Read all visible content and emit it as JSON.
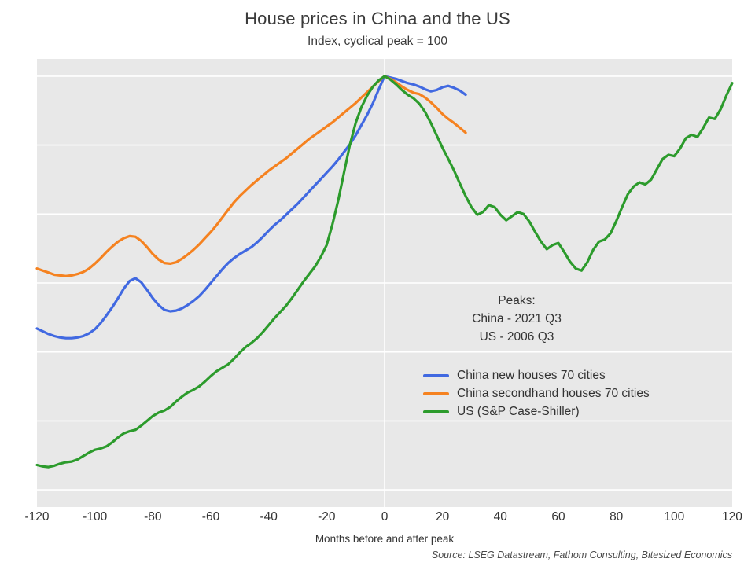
{
  "title": "House prices in China and the US",
  "subtitle": "Index, cyclical peak = 100",
  "xlabel": "Months before and after peak",
  "source": "Source: LSEG Datastream, Fathom Consulting, Bitesized Economics",
  "annotation": {
    "lines": [
      "Peaks:",
      "China - 2021 Q3",
      "US - 2006 Q3"
    ]
  },
  "legend": [
    {
      "label": "China new houses 70 cities",
      "color": "#4169e1"
    },
    {
      "label": "China secondhand houses 70 cities",
      "color": "#f58220"
    },
    {
      "label": "US (S&P Case-Shiller)",
      "color": "#2c9b2c"
    }
  ],
  "colors": {
    "plot_bg": "#e8e8e8",
    "grid": "#ffffff",
    "text": "#333333"
  },
  "chart_data": {
    "type": "line",
    "title": "House prices in China and the US",
    "subtitle": "Index, cyclical peak = 100",
    "xlabel": "Months before and after peak",
    "ylabel": "",
    "xlim": [
      -120,
      120
    ],
    "ylim": [
      37.5,
      102.5
    ],
    "xticks": [
      -120,
      -100,
      -80,
      -60,
      -40,
      -20,
      0,
      20,
      40,
      60,
      80,
      100,
      120
    ],
    "gridlines_y": [
      40,
      50,
      60,
      70,
      80,
      90,
      100
    ],
    "vline_x": 0,
    "grid": "horizontal white lines on grey panel, no y tick labels",
    "legend_position": "inside center-right",
    "series": [
      {
        "name": "China new houses 70 cities",
        "color": "#4169e1",
        "points": [
          [
            -120,
            63.4
          ],
          [
            -118,
            63.0
          ],
          [
            -116,
            62.6
          ],
          [
            -114,
            62.3
          ],
          [
            -112,
            62.1
          ],
          [
            -110,
            62.0
          ],
          [
            -108,
            62.0
          ],
          [
            -106,
            62.1
          ],
          [
            -104,
            62.3
          ],
          [
            -102,
            62.7
          ],
          [
            -100,
            63.3
          ],
          [
            -98,
            64.2
          ],
          [
            -96,
            65.3
          ],
          [
            -94,
            66.5
          ],
          [
            -92,
            67.8
          ],
          [
            -90,
            69.2
          ],
          [
            -88,
            70.3
          ],
          [
            -86,
            70.7
          ],
          [
            -84,
            70.1
          ],
          [
            -82,
            69.0
          ],
          [
            -80,
            67.8
          ],
          [
            -78,
            66.8
          ],
          [
            -76,
            66.1
          ],
          [
            -74,
            65.9
          ],
          [
            -72,
            66.0
          ],
          [
            -70,
            66.3
          ],
          [
            -68,
            66.8
          ],
          [
            -66,
            67.4
          ],
          [
            -64,
            68.1
          ],
          [
            -62,
            69.0
          ],
          [
            -60,
            70.0
          ],
          [
            -58,
            71.0
          ],
          [
            -56,
            72.0
          ],
          [
            -54,
            72.9
          ],
          [
            -52,
            73.6
          ],
          [
            -50,
            74.2
          ],
          [
            -48,
            74.7
          ],
          [
            -46,
            75.2
          ],
          [
            -44,
            75.9
          ],
          [
            -42,
            76.7
          ],
          [
            -40,
            77.6
          ],
          [
            -38,
            78.4
          ],
          [
            -36,
            79.1
          ],
          [
            -34,
            79.9
          ],
          [
            -32,
            80.7
          ],
          [
            -30,
            81.5
          ],
          [
            -28,
            82.4
          ],
          [
            -26,
            83.3
          ],
          [
            -24,
            84.2
          ],
          [
            -22,
            85.1
          ],
          [
            -20,
            86.0
          ],
          [
            -18,
            86.9
          ],
          [
            -16,
            87.9
          ],
          [
            -14,
            89.0
          ],
          [
            -12,
            90.1
          ],
          [
            -10,
            91.4
          ],
          [
            -8,
            92.9
          ],
          [
            -6,
            94.4
          ],
          [
            -4,
            96.1
          ],
          [
            -2,
            98.1
          ],
          [
            0,
            100.0
          ],
          [
            2,
            99.8
          ],
          [
            4,
            99.6
          ],
          [
            6,
            99.3
          ],
          [
            8,
            99.0
          ],
          [
            10,
            98.8
          ],
          [
            12,
            98.5
          ],
          [
            14,
            98.1
          ],
          [
            16,
            97.8
          ],
          [
            18,
            98.0
          ],
          [
            20,
            98.4
          ],
          [
            22,
            98.6
          ],
          [
            24,
            98.3
          ],
          [
            26,
            97.9
          ],
          [
            28,
            97.3
          ]
        ]
      },
      {
        "name": "China secondhand houses 70 cities",
        "color": "#f58220",
        "points": [
          [
            -120,
            72.1
          ],
          [
            -118,
            71.8
          ],
          [
            -116,
            71.5
          ],
          [
            -114,
            71.2
          ],
          [
            -112,
            71.1
          ],
          [
            -110,
            71.0
          ],
          [
            -108,
            71.1
          ],
          [
            -106,
            71.3
          ],
          [
            -104,
            71.6
          ],
          [
            -102,
            72.1
          ],
          [
            -100,
            72.8
          ],
          [
            -98,
            73.6
          ],
          [
            -96,
            74.5
          ],
          [
            -94,
            75.3
          ],
          [
            -92,
            76.0
          ],
          [
            -90,
            76.5
          ],
          [
            -88,
            76.8
          ],
          [
            -86,
            76.7
          ],
          [
            -84,
            76.1
          ],
          [
            -82,
            75.2
          ],
          [
            -80,
            74.2
          ],
          [
            -78,
            73.4
          ],
          [
            -76,
            72.9
          ],
          [
            -74,
            72.8
          ],
          [
            -72,
            73.0
          ],
          [
            -70,
            73.5
          ],
          [
            -68,
            74.1
          ],
          [
            -66,
            74.8
          ],
          [
            -64,
            75.6
          ],
          [
            -62,
            76.5
          ],
          [
            -60,
            77.4
          ],
          [
            -58,
            78.4
          ],
          [
            -56,
            79.5
          ],
          [
            -54,
            80.6
          ],
          [
            -52,
            81.7
          ],
          [
            -50,
            82.6
          ],
          [
            -48,
            83.4
          ],
          [
            -46,
            84.2
          ],
          [
            -44,
            84.9
          ],
          [
            -42,
            85.6
          ],
          [
            -40,
            86.3
          ],
          [
            -38,
            86.9
          ],
          [
            -36,
            87.5
          ],
          [
            -34,
            88.1
          ],
          [
            -32,
            88.8
          ],
          [
            -30,
            89.5
          ],
          [
            -28,
            90.2
          ],
          [
            -26,
            90.9
          ],
          [
            -24,
            91.5
          ],
          [
            -22,
            92.1
          ],
          [
            -20,
            92.7
          ],
          [
            -18,
            93.3
          ],
          [
            -16,
            94.0
          ],
          [
            -14,
            94.7
          ],
          [
            -12,
            95.4
          ],
          [
            -10,
            96.1
          ],
          [
            -8,
            96.9
          ],
          [
            -6,
            97.7
          ],
          [
            -4,
            98.5
          ],
          [
            -2,
            99.3
          ],
          [
            0,
            100.0
          ],
          [
            2,
            99.6
          ],
          [
            4,
            99.1
          ],
          [
            6,
            98.5
          ],
          [
            8,
            98.0
          ],
          [
            10,
            97.6
          ],
          [
            12,
            97.4
          ],
          [
            14,
            96.9
          ],
          [
            16,
            96.2
          ],
          [
            18,
            95.4
          ],
          [
            20,
            94.5
          ],
          [
            22,
            93.8
          ],
          [
            24,
            93.2
          ],
          [
            26,
            92.5
          ],
          [
            28,
            91.8
          ]
        ]
      },
      {
        "name": "US (S&P Case-Shiller)",
        "color": "#2c9b2c",
        "points": [
          [
            -120,
            43.6
          ],
          [
            -118,
            43.4
          ],
          [
            -116,
            43.3
          ],
          [
            -114,
            43.5
          ],
          [
            -112,
            43.8
          ],
          [
            -110,
            44.0
          ],
          [
            -108,
            44.1
          ],
          [
            -106,
            44.4
          ],
          [
            -104,
            44.9
          ],
          [
            -102,
            45.4
          ],
          [
            -100,
            45.8
          ],
          [
            -98,
            46.0
          ],
          [
            -96,
            46.3
          ],
          [
            -94,
            46.9
          ],
          [
            -92,
            47.6
          ],
          [
            -90,
            48.2
          ],
          [
            -88,
            48.5
          ],
          [
            -86,
            48.7
          ],
          [
            -84,
            49.3
          ],
          [
            -82,
            50.0
          ],
          [
            -80,
            50.7
          ],
          [
            -78,
            51.2
          ],
          [
            -76,
            51.5
          ],
          [
            -74,
            52.0
          ],
          [
            -72,
            52.8
          ],
          [
            -70,
            53.5
          ],
          [
            -68,
            54.1
          ],
          [
            -66,
            54.5
          ],
          [
            -64,
            55.0
          ],
          [
            -62,
            55.7
          ],
          [
            -60,
            56.5
          ],
          [
            -58,
            57.2
          ],
          [
            -56,
            57.7
          ],
          [
            -54,
            58.2
          ],
          [
            -52,
            59.0
          ],
          [
            -50,
            59.9
          ],
          [
            -48,
            60.7
          ],
          [
            -46,
            61.3
          ],
          [
            -44,
            62.0
          ],
          [
            -42,
            62.9
          ],
          [
            -40,
            63.9
          ],
          [
            -38,
            64.9
          ],
          [
            -36,
            65.8
          ],
          [
            -34,
            66.7
          ],
          [
            -32,
            67.8
          ],
          [
            -30,
            69.0
          ],
          [
            -28,
            70.2
          ],
          [
            -26,
            71.3
          ],
          [
            -24,
            72.4
          ],
          [
            -22,
            73.8
          ],
          [
            -20,
            75.5
          ],
          [
            -18,
            78.5
          ],
          [
            -16,
            82.0
          ],
          [
            -14,
            86.0
          ],
          [
            -12,
            90.0
          ],
          [
            -10,
            93.2
          ],
          [
            -8,
            95.5
          ],
          [
            -6,
            97.2
          ],
          [
            -4,
            98.5
          ],
          [
            -2,
            99.4
          ],
          [
            0,
            100.0
          ],
          [
            2,
            99.5
          ],
          [
            4,
            98.8
          ],
          [
            6,
            98.0
          ],
          [
            8,
            97.3
          ],
          [
            10,
            96.8
          ],
          [
            12,
            96.0
          ],
          [
            14,
            94.8
          ],
          [
            16,
            93.2
          ],
          [
            18,
            91.4
          ],
          [
            20,
            89.6
          ],
          [
            22,
            88.0
          ],
          [
            24,
            86.3
          ],
          [
            26,
            84.4
          ],
          [
            28,
            82.6
          ],
          [
            30,
            81.0
          ],
          [
            32,
            79.9
          ],
          [
            34,
            80.3
          ],
          [
            36,
            81.3
          ],
          [
            38,
            81.0
          ],
          [
            40,
            79.9
          ],
          [
            42,
            79.1
          ],
          [
            44,
            79.7
          ],
          [
            46,
            80.3
          ],
          [
            48,
            80.0
          ],
          [
            50,
            78.9
          ],
          [
            52,
            77.4
          ],
          [
            54,
            76.0
          ],
          [
            56,
            74.9
          ],
          [
            58,
            75.5
          ],
          [
            60,
            75.8
          ],
          [
            62,
            74.5
          ],
          [
            64,
            73.1
          ],
          [
            66,
            72.1
          ],
          [
            68,
            71.8
          ],
          [
            70,
            73.0
          ],
          [
            72,
            74.8
          ],
          [
            74,
            76.0
          ],
          [
            76,
            76.3
          ],
          [
            78,
            77.2
          ],
          [
            80,
            79.0
          ],
          [
            82,
            81.0
          ],
          [
            84,
            82.9
          ],
          [
            86,
            84.0
          ],
          [
            88,
            84.6
          ],
          [
            90,
            84.3
          ],
          [
            92,
            85.0
          ],
          [
            94,
            86.5
          ],
          [
            96,
            88.0
          ],
          [
            98,
            88.6
          ],
          [
            100,
            88.4
          ],
          [
            102,
            89.5
          ],
          [
            104,
            91.0
          ],
          [
            106,
            91.5
          ],
          [
            108,
            91.2
          ],
          [
            110,
            92.5
          ],
          [
            112,
            94.0
          ],
          [
            114,
            93.8
          ],
          [
            116,
            95.2
          ],
          [
            118,
            97.2
          ],
          [
            120,
            99.0
          ]
        ]
      }
    ]
  }
}
